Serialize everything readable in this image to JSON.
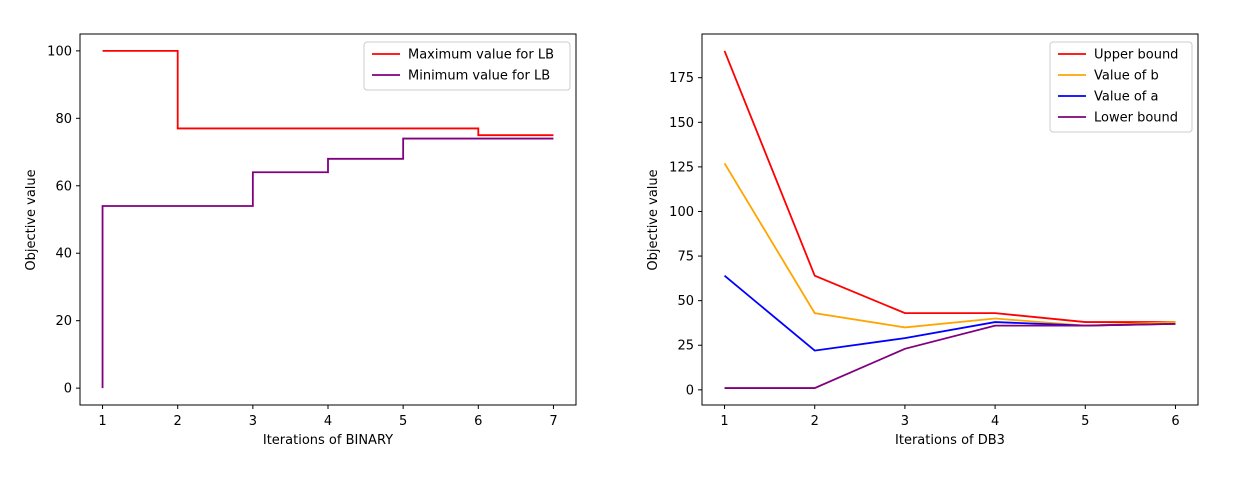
{
  "chart_data": [
    {
      "type": "line",
      "step": "post",
      "xlabel": "Iterations of BINARY",
      "ylabel": "Objective value",
      "xlim": [
        0.7,
        7.3
      ],
      "ylim": [
        -5,
        105
      ],
      "xticks": [
        1,
        2,
        3,
        4,
        5,
        6,
        7
      ],
      "yticks": [
        0,
        20,
        40,
        60,
        80,
        100
      ],
      "legend": "top-right",
      "series": [
        {
          "name": "Maximum value for LB",
          "color": "#ff0000",
          "x": [
            1,
            2,
            3,
            4,
            5,
            6,
            7
          ],
          "y": [
            100,
            77,
            77,
            77,
            77,
            75,
            75
          ]
        },
        {
          "name": "Minimum value for LB",
          "color": "#800080",
          "x": [
            1,
            1,
            2,
            3,
            4,
            5,
            6,
            7
          ],
          "y": [
            0,
            54,
            54,
            64,
            68,
            74,
            74,
            74
          ]
        }
      ]
    },
    {
      "type": "line",
      "step": "none",
      "xlabel": "Iterations of DB3",
      "ylabel": "Objective value",
      "xlim": [
        0.75,
        6.25
      ],
      "ylim": [
        -8.5,
        199.5
      ],
      "xticks": [
        1,
        2,
        3,
        4,
        5,
        6
      ],
      "yticks": [
        0,
        25,
        50,
        75,
        100,
        125,
        150,
        175
      ],
      "legend": "top-right",
      "series": [
        {
          "name": "Upper bound",
          "color": "#ff0000",
          "x": [
            1,
            2,
            3,
            4,
            5,
            6
          ],
          "y": [
            190,
            64,
            43,
            43,
            38,
            38
          ]
        },
        {
          "name": "Value of b",
          "color": "#ffa500",
          "x": [
            1,
            2,
            3,
            4,
            5,
            6
          ],
          "y": [
            127,
            43,
            35,
            40,
            36,
            38
          ]
        },
        {
          "name": "Value of a",
          "color": "#0000ff",
          "x": [
            1,
            2,
            3,
            4,
            5,
            6
          ],
          "y": [
            64,
            22,
            29,
            38,
            36,
            37
          ]
        },
        {
          "name": "Lower bound",
          "color": "#800080",
          "x": [
            1,
            2,
            3,
            4,
            5,
            6
          ],
          "y": [
            1,
            1,
            23,
            36,
            36,
            37
          ]
        }
      ]
    }
  ]
}
